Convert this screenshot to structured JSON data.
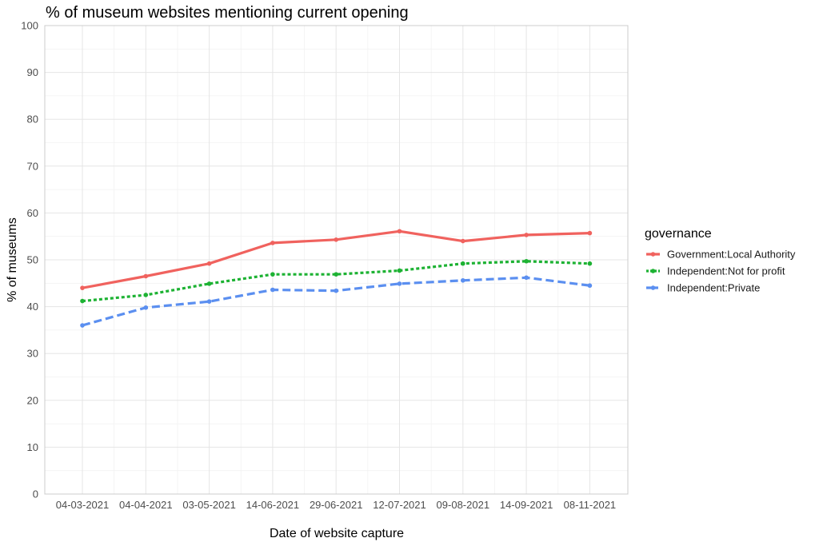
{
  "chart_data": {
    "type": "line",
    "title": "% of museum websites mentioning current opening",
    "xlabel": "Date of website capture",
    "ylabel": "% of museums",
    "categories": [
      "04-03-2021",
      "04-04-2021",
      "03-05-2021",
      "14-06-2021",
      "29-06-2021",
      "12-07-2021",
      "09-08-2021",
      "14-09-2021",
      "08-11-2021"
    ],
    "ylim": [
      0,
      100
    ],
    "yticks": [
      0,
      10,
      20,
      30,
      40,
      50,
      60,
      70,
      80,
      90,
      100
    ],
    "grid": true,
    "legend": {
      "title": "governance",
      "position": "right"
    },
    "series": [
      {
        "name": "Government:Local Authority",
        "color": "#F0625E",
        "dash": "solid",
        "values": [
          44.0,
          46.5,
          49.2,
          53.6,
          54.3,
          56.1,
          54.0,
          55.3,
          55.7
        ]
      },
      {
        "name": "Independent:Not for profit",
        "color": "#1DB233",
        "dash": "dotted",
        "values": [
          41.2,
          42.5,
          44.9,
          46.9,
          46.9,
          47.7,
          49.2,
          49.7,
          49.2
        ]
      },
      {
        "name": "Independent:Private",
        "color": "#5B8FF0",
        "dash": "dashed",
        "values": [
          36.0,
          39.8,
          41.1,
          43.6,
          43.4,
          44.9,
          45.6,
          46.2,
          44.5
        ]
      }
    ]
  }
}
